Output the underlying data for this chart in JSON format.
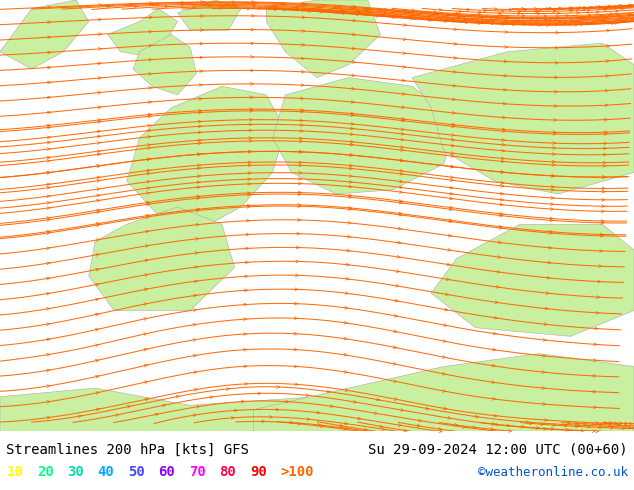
{
  "title_left": "Streamlines 200 hPa [kts] GFS",
  "title_right": "Su 29-09-2024 12:00 UTC (00+60)",
  "credit": "©weatheronline.co.uk",
  "legend_values": [
    "10",
    "20",
    "30",
    "40",
    "50",
    "60",
    "70",
    "80",
    "90",
    ">100"
  ],
  "legend_colors": [
    "#ffff00",
    "#00ff88",
    "#00ddaa",
    "#00aaff",
    "#4444ff",
    "#8800ff",
    "#ff00ff",
    "#ff0044",
    "#ff0000",
    "#ff6600"
  ],
  "background_color": "#d8d8d8",
  "land_color": "#c8f0a0",
  "text_color": "#000000",
  "title_fontsize": 10,
  "legend_fontsize": 10,
  "fig_width": 6.34,
  "fig_height": 4.9,
  "dpi": 100
}
